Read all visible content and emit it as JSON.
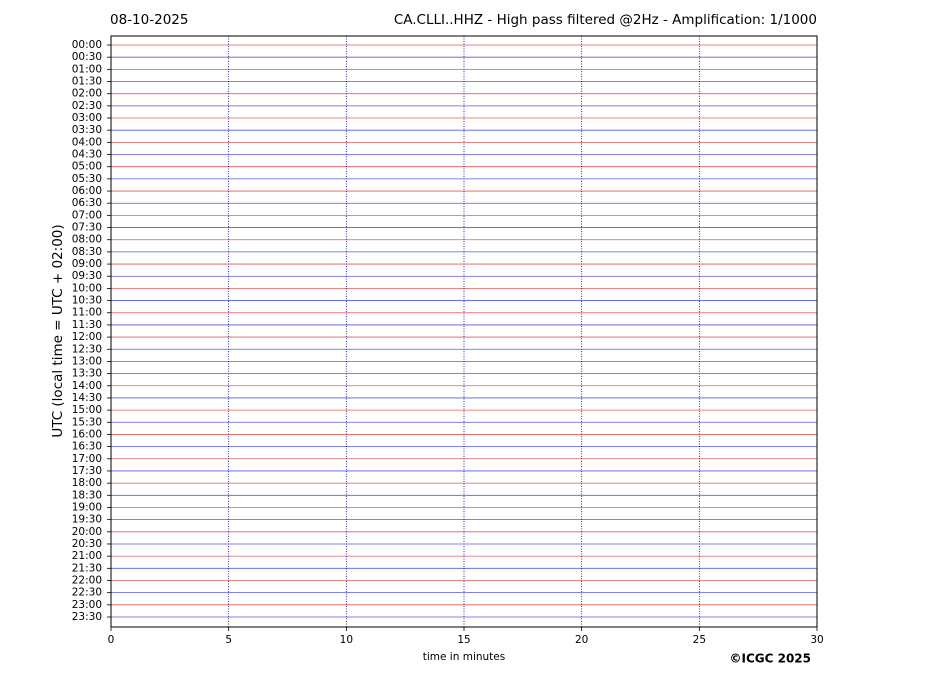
{
  "chart_data": {
    "type": "helicorder",
    "date": "08-10-2025",
    "title": "CA.CLLI..HHZ - High pass filtered @2Hz - Amplification: 1/1000",
    "ylabel": "UTC (local time = UTC + 02:00)",
    "xlabel": "time in minutes",
    "credit": "©ICGC 2025",
    "categories": [
      "00:00",
      "00:30",
      "01:00",
      "01:30",
      "02:00",
      "02:30",
      "03:00",
      "03:30",
      "04:00",
      "04:30",
      "05:00",
      "05:30",
      "06:00",
      "06:30",
      "07:00",
      "07:30",
      "08:00",
      "08:30",
      "09:00",
      "09:30",
      "10:00",
      "10:30",
      "11:00",
      "11:30",
      "12:00",
      "12:30",
      "13:00",
      "13:30",
      "14:00",
      "14:30",
      "15:00",
      "15:30",
      "16:00",
      "16:30",
      "17:00",
      "17:30",
      "18:00",
      "18:30",
      "19:00",
      "19:30",
      "20:00",
      "20:30",
      "21:00",
      "21:30",
      "22:00",
      "22:30",
      "23:00",
      "23:30"
    ],
    "colors": [
      "#e03030",
      "#3030e0"
    ],
    "xlim": [
      0,
      30
    ],
    "xticks": [
      0,
      5,
      10,
      15,
      20,
      25,
      30
    ],
    "grid": true
  }
}
